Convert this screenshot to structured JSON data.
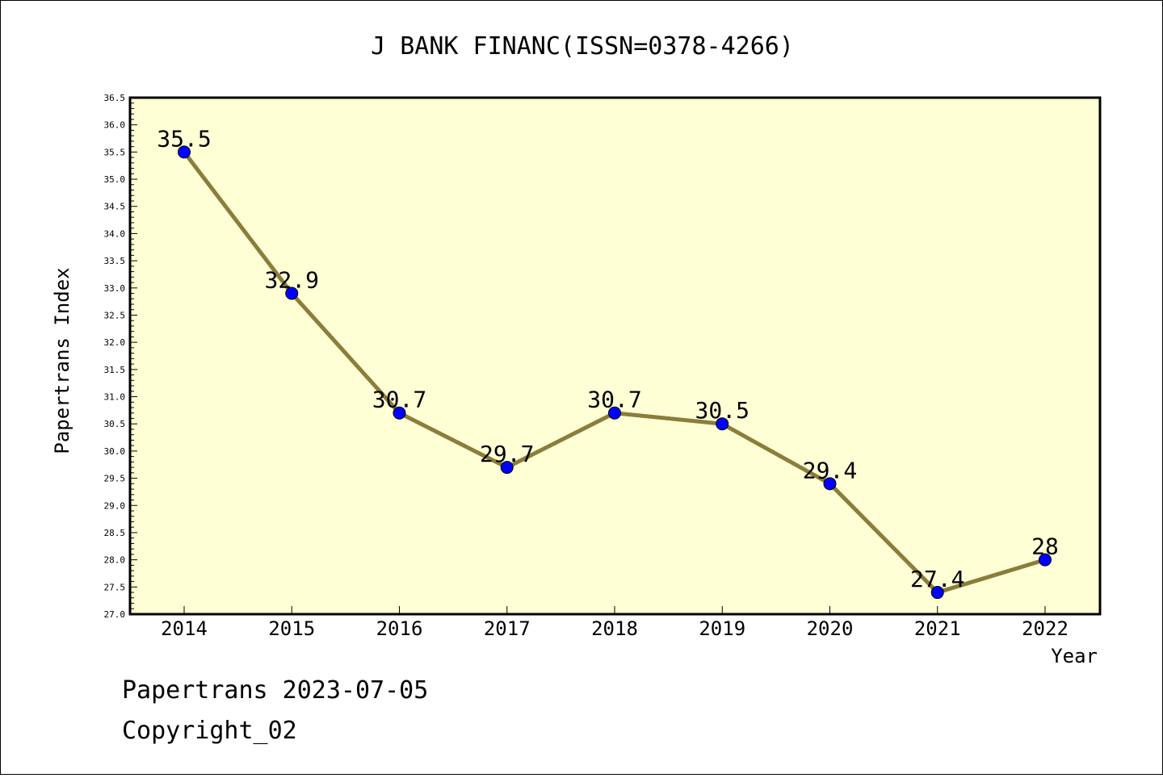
{
  "chart_data": {
    "type": "line",
    "title": "J BANK FINANC(ISSN=0378-4266)",
    "xlabel": "Year",
    "ylabel": "Papertrans Index",
    "categories": [
      "2014",
      "2015",
      "2016",
      "2017",
      "2018",
      "2019",
      "2020",
      "2021",
      "2022"
    ],
    "series": [
      {
        "values": [
          35.5,
          32.9,
          30.7,
          29.7,
          30.7,
          30.5,
          29.4,
          27.4,
          28.0
        ]
      }
    ],
    "data_labels": [
      "35.5",
      "32.9",
      "30.7",
      "29.7",
      "30.7",
      "30.5",
      "29.4",
      "27.4",
      "28"
    ],
    "ylim": [
      27.0,
      36.5
    ],
    "yticks": [
      "27.0",
      "27.5",
      "28.0",
      "28.5",
      "29.0",
      "29.5",
      "30.0",
      "30.5",
      "31.0",
      "31.5",
      "32.0",
      "32.5",
      "33.0",
      "33.5",
      "34.0",
      "34.5",
      "35.0",
      "35.5",
      "36.0",
      "36.5"
    ],
    "grid": false,
    "colors": {
      "plot_background": "#ffffd6",
      "line": "#8b7d3a",
      "marker": "#0000ff"
    }
  },
  "footer": {
    "line1": "Papertrans 2023-07-05",
    "line2": "Copyright_02"
  }
}
